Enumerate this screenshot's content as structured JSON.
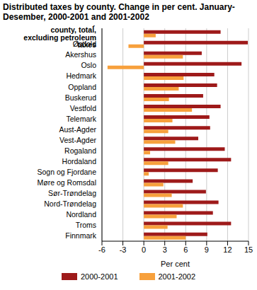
{
  "chart_data": {
    "type": "bar",
    "orientation": "horizontal",
    "title": "Distributed taxes by county. Change in per cent. January-Desember, 2000-2001 and 2001-2002",
    "x_label": "Per cent",
    "categories": [
      "Distributed taxes by county, total, excluding petroleum taxes",
      "Østfold",
      "Akershus",
      "Oslo",
      "Hedmark",
      "Oppland",
      "Buskerud",
      "Vestfold",
      "Telemark",
      "Aust-Agder",
      "Vest-Agder",
      "Rogaland",
      "Hordaland",
      "Sogn og Fjordane",
      "Møre og Romsdal",
      "Sør-Trøndelag",
      "Nord-Trøndelag",
      "Nordland",
      "Troms",
      "Finnmark"
    ],
    "series": [
      {
        "name": "2000-2001",
        "color": "#9e1a1a",
        "values": [
          11.0,
          14.9,
          8.3,
          14.0,
          10.1,
          10.5,
          8.5,
          11.0,
          9.4,
          9.5,
          7.8,
          11.6,
          12.5,
          10.6,
          7.0,
          8.9,
          10.7,
          9.9,
          12.5,
          9.1
        ]
      },
      {
        "name": "2001-2002",
        "color": "#f7a03c",
        "values": [
          1.7,
          -2.2,
          5.6,
          -5.2,
          5.7,
          5.0,
          3.6,
          6.9,
          4.1,
          3.5,
          4.5,
          0.9,
          3.5,
          0.7,
          2.8,
          4.0,
          5.6,
          4.7,
          3.4,
          6.0
        ]
      }
    ],
    "xlim": [
      -6,
      15
    ],
    "xticks": [
      -6,
      -3,
      0,
      3,
      6,
      9,
      12,
      15
    ],
    "grid": true,
    "legend": "bottom"
  }
}
